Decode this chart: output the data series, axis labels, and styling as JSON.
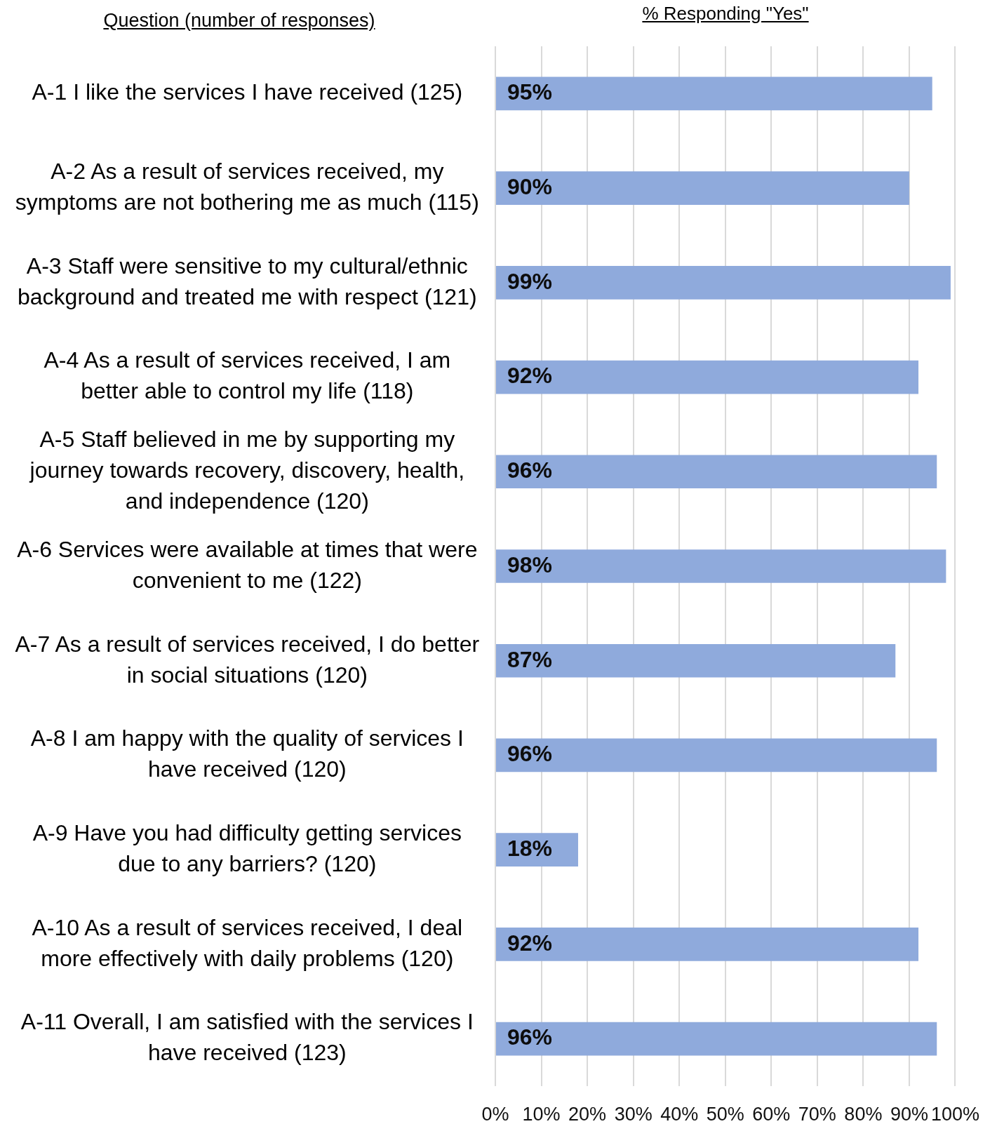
{
  "chart_data": {
    "type": "bar",
    "orientation": "horizontal",
    "xlabel": "% Responding \"Yes\"",
    "ylabel": "Question (number of responses)",
    "categories": [
      "A-1 I like the services I have received (125)",
      "A-2 As a result of services received, my symptoms are not bothering me as much (115)",
      "A-3 Staff were sensitive to my cultural/ethnic background and treated me with respect (121)",
      "A-4 As a result of services received, I am better able to control my life (118)",
      "A-5 Staff believed in me by supporting my journey towards recovery, discovery, health, and independence (120)",
      "A-6 Services were available at times that were convenient to me (122)",
      "A-7 As a result of services received, I do better in social situations (120)",
      "A-8 I am happy with the quality of services I have received (120)",
      "A-9 Have you had difficulty getting services due to any barriers? (120)",
      "A-10 As a result of services received, I deal more effectively with daily problems (120)",
      "A-11 Overall, I am satisfied with the services I have received (123)"
    ],
    "values": [
      95,
      90,
      99,
      92,
      96,
      98,
      87,
      96,
      18,
      92,
      96
    ],
    "color": "#8faadc",
    "value_labels": [
      "95%",
      "90%",
      "99%",
      "92%",
      "96%",
      "98%",
      "87%",
      "96%",
      "18%",
      "92%",
      "96%"
    ],
    "xlim": [
      0,
      100
    ],
    "xticks": [
      {
        "value": 0,
        "label": "0%"
      },
      {
        "value": 10,
        "label": "10%"
      },
      {
        "value": 20,
        "label": "20%"
      },
      {
        "value": 30,
        "label": "30%"
      },
      {
        "value": 40,
        "label": "40%"
      },
      {
        "value": 50,
        "label": "50%"
      },
      {
        "value": 60,
        "label": "60%"
      },
      {
        "value": 70,
        "label": "70%"
      },
      {
        "value": 80,
        "label": "80%"
      },
      {
        "value": 90,
        "label": "90%"
      },
      {
        "value": 100,
        "label": "100%"
      }
    ],
    "grid": "x"
  }
}
